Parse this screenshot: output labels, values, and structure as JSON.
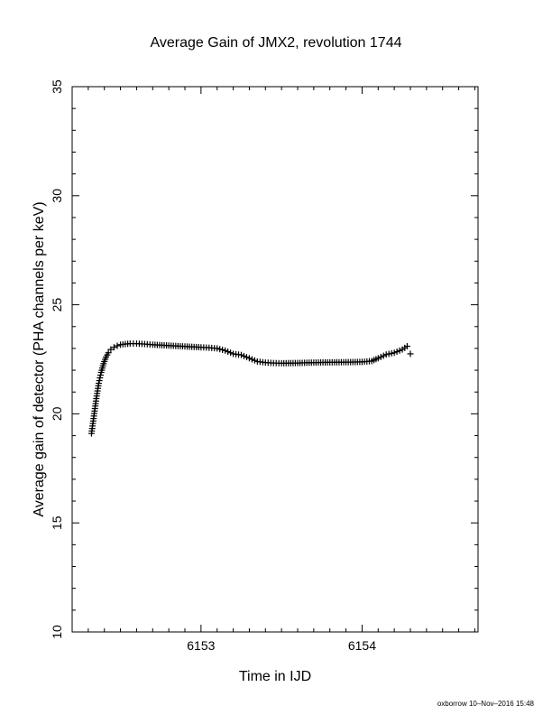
{
  "chart_data": {
    "type": "scatter",
    "title": "Average Gain of JMX2, revolution 1744",
    "xlabel": "Time in IJD",
    "ylabel": "Average gain of detector (PHA channels per keV)",
    "xlim": [
      6152.2,
      6154.72
    ],
    "ylim": [
      10,
      35
    ],
    "xticks": [
      "6153",
      "6154"
    ],
    "yticks": [
      "10",
      "15",
      "20",
      "25",
      "30",
      "35"
    ],
    "grid": false,
    "marker": "plus",
    "series": [
      {
        "x": [
          6152.32,
          6152.335,
          6152.35,
          6152.365,
          6152.38,
          6152.395,
          6152.41,
          6152.425,
          6152.44,
          6152.46,
          6152.48,
          6152.5,
          6152.53,
          6152.56,
          6152.6,
          6152.65,
          6152.7,
          6152.8,
          6152.9,
          6153.0,
          6153.05,
          6153.1,
          6153.15,
          6153.2,
          6153.25,
          6153.3,
          6153.35,
          6153.4,
          6153.45,
          6153.5,
          6153.6,
          6153.7,
          6153.8,
          6153.9,
          6154.0,
          6154.06,
          6154.1,
          6154.15,
          6154.2,
          6154.25,
          6154.28,
          6154.3
        ],
        "y": [
          19.1,
          19.9,
          20.7,
          21.4,
          21.9,
          22.3,
          22.6,
          22.8,
          22.95,
          23.05,
          23.12,
          23.17,
          23.2,
          23.22,
          23.22,
          23.2,
          23.17,
          23.13,
          23.09,
          23.05,
          23.03,
          23.0,
          22.9,
          22.75,
          22.7,
          22.55,
          22.4,
          22.35,
          22.33,
          22.32,
          22.33,
          22.35,
          22.36,
          22.37,
          22.38,
          22.42,
          22.55,
          22.72,
          22.8,
          22.95,
          23.1,
          22.75
        ]
      }
    ]
  },
  "footer": "oxborrow 10–Nov–2016 15:48"
}
